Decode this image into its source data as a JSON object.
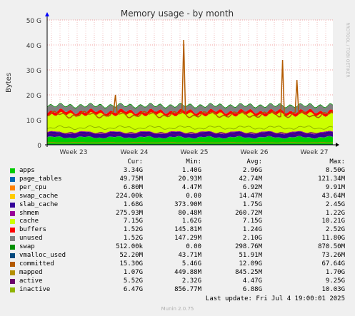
{
  "chart_data": {
    "type": "area",
    "title": "Memory usage - by month",
    "ylabel": "Bytes",
    "ylim": [
      0,
      50
    ],
    "y_ticks": [
      "0",
      "10 G",
      "20 G",
      "30 G",
      "40 G",
      "50 G"
    ],
    "x_ticks": [
      "Week 23",
      "Week 24",
      "Week 25",
      "Week 26",
      "Week 27"
    ],
    "watermark": "RRDTOOL / TOBI OETIKER",
    "grid": true,
    "columns": [
      "Cur:",
      "Min:",
      "Avg:",
      "Max:"
    ],
    "series": [
      {
        "name": "apps",
        "color": "#00cc00",
        "cur": "3.34G",
        "min": "1.40G",
        "avg": "2.96G",
        "max": "8.50G",
        "avg_gb": 2.96
      },
      {
        "name": "page_tables",
        "color": "#0066b3",
        "cur": "49.75M",
        "min": "20.93M",
        "avg": "42.74M",
        "max": "121.34M",
        "avg_gb": 0.04
      },
      {
        "name": "per_cpu",
        "color": "#ff8000",
        "cur": "6.80M",
        "min": "4.47M",
        "avg": "6.92M",
        "max": "9.91M",
        "avg_gb": 0.01
      },
      {
        "name": "swap_cache",
        "color": "#ffcc00",
        "cur": "224.00k",
        "min": "0.00",
        "avg": "14.47M",
        "max": "43.64M",
        "avg_gb": 0.01
      },
      {
        "name": "slab_cache",
        "color": "#330099",
        "cur": "1.68G",
        "min": "373.90M",
        "avg": "1.75G",
        "max": "2.45G",
        "avg_gb": 1.75
      },
      {
        "name": "shmem",
        "color": "#990099",
        "cur": "275.93M",
        "min": "80.48M",
        "avg": "260.72M",
        "max": "1.22G",
        "avg_gb": 0.26
      },
      {
        "name": "cache",
        "color": "#ccff00",
        "cur": "7.15G",
        "min": "1.62G",
        "avg": "7.15G",
        "max": "10.21G",
        "avg_gb": 7.15
      },
      {
        "name": "buffers",
        "color": "#ff0000",
        "cur": "1.52G",
        "min": "145.81M",
        "avg": "1.24G",
        "max": "2.52G",
        "avg_gb": 1.24
      },
      {
        "name": "unused",
        "color": "#808080",
        "cur": "1.52G",
        "min": "147.29M",
        "avg": "2.10G",
        "max": "11.80G",
        "avg_gb": 2.1
      },
      {
        "name": "swap",
        "color": "#008f00",
        "cur": "512.00k",
        "min": "0.00",
        "avg": "298.76M",
        "max": "870.50M",
        "avg_gb": 0.3
      },
      {
        "name": "vmalloc_used",
        "color": "#00487d",
        "cur": "52.20M",
        "min": "43.71M",
        "avg": "51.91M",
        "max": "73.26M",
        "avg_gb": 0.05
      },
      {
        "name": "committed",
        "color": "#b35a00",
        "cur": "15.30G",
        "min": "5.46G",
        "avg": "12.09G",
        "max": "67.64G",
        "avg_gb": 12.09
      },
      {
        "name": "mapped",
        "color": "#b38f00",
        "cur": "1.07G",
        "min": "449.88M",
        "avg": "845.25M",
        "max": "1.70G",
        "avg_gb": 0.85
      },
      {
        "name": "active",
        "color": "#6b006b",
        "cur": "5.52G",
        "min": "2.32G",
        "avg": "4.47G",
        "max": "9.25G",
        "avg_gb": 4.47
      },
      {
        "name": "inactive",
        "color": "#8fb300",
        "cur": "6.47G",
        "min": "856.77M",
        "avg": "6.88G",
        "max": "10.03G",
        "avg_gb": 6.88
      }
    ]
  },
  "footer": {
    "last_update": "Last update: Fri Jul  4 19:00:01 2025",
    "munin": "Munin 2.0.75"
  }
}
